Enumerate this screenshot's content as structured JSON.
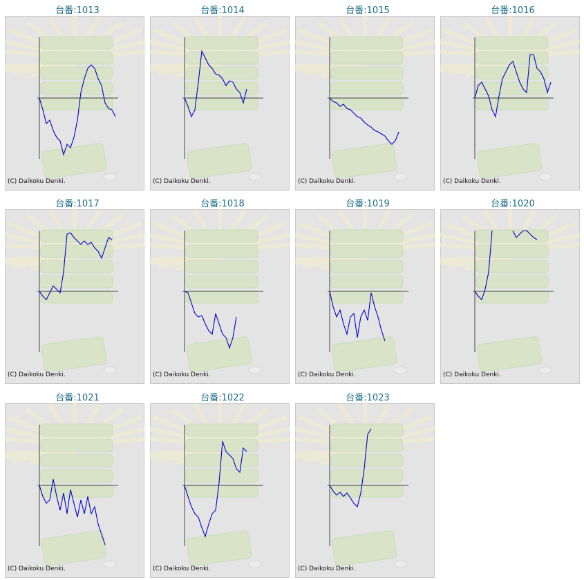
{
  "chart_data": [
    {
      "type": "line",
      "title": "台番:1013",
      "credit": "(C) Daikoku Denki.",
      "color": "#0000cc",
      "ylim": [
        -88,
        88
      ],
      "values": [
        0,
        -17,
        -37,
        -32,
        -47,
        -57,
        -62,
        -82,
        -67,
        -72,
        -57,
        -32,
        8,
        28,
        43,
        48,
        43,
        28,
        18,
        -7,
        -15,
        -17,
        -27
      ]
    },
    {
      "type": "line",
      "title": "台番:1014",
      "credit": "(C) Daikoku Denki.",
      "color": "#0000cc",
      "ylim": [
        -88,
        88
      ],
      "values": [
        0,
        -12,
        -27,
        -17,
        23,
        68,
        58,
        48,
        43,
        35,
        33,
        28,
        18,
        25,
        23,
        13,
        8,
        -7,
        13
      ]
    },
    {
      "type": "line",
      "title": "台番:1015",
      "credit": "(C) Daikoku Denki.",
      "color": "#0000cc",
      "ylim": [
        -88,
        88
      ],
      "values": [
        0,
        -5,
        -7,
        -12,
        -9,
        -15,
        -17,
        -22,
        -27,
        -29,
        -35,
        -39,
        -42,
        -47,
        -49,
        -52,
        -55,
        -62,
        -67,
        -62,
        -49
      ]
    },
    {
      "type": "line",
      "title": "台番:1016",
      "credit": "(C) Daikoku Denki.",
      "color": "#0000cc",
      "ylim": [
        -88,
        88
      ],
      "values": [
        0,
        18,
        23,
        13,
        3,
        -17,
        -27,
        3,
        28,
        38,
        48,
        53,
        38,
        23,
        13,
        8,
        63,
        63,
        43,
        38,
        28,
        8,
        23
      ]
    },
    {
      "type": "line",
      "title": "台番:1017",
      "credit": "(C) Daikoku Denki.",
      "color": "#0000cc",
      "ylim": [
        -88,
        88
      ],
      "values": [
        0,
        -7,
        -12,
        -2,
        8,
        3,
        -2,
        28,
        83,
        85,
        78,
        73,
        68,
        73,
        68,
        71,
        63,
        58,
        48,
        63,
        78,
        75
      ]
    },
    {
      "type": "line",
      "title": "台番:1018",
      "credit": "(C) Daikoku Denki.",
      "color": "#0000cc",
      "ylim": [
        -88,
        88
      ],
      "values": [
        0,
        -2,
        -17,
        -32,
        -37,
        -35,
        -47,
        -57,
        -62,
        -32,
        -47,
        -62,
        -67,
        -82,
        -67,
        -37
      ]
    },
    {
      "type": "line",
      "title": "台番:1019",
      "credit": "(C) Daikoku Denki.",
      "color": "#0000cc",
      "ylim": [
        -88,
        88
      ],
      "values": [
        0,
        -22,
        -37,
        -27,
        -47,
        -62,
        -37,
        -32,
        -67,
        -37,
        -27,
        -42,
        -2,
        -22,
        -37,
        -57,
        -72
      ]
    },
    {
      "type": "line",
      "title": "台番:1020",
      "credit": "(C) Daikoku Denki.",
      "color": "#0000cc",
      "ylim": [
        -88,
        88
      ],
      "values": [
        0,
        -7,
        -12,
        3,
        28,
        88,
        null,
        null,
        null,
        null,
        null,
        88,
        78,
        83,
        88,
        88,
        83,
        78,
        75
      ]
    },
    {
      "type": "line",
      "title": "台番:1021",
      "credit": "(C) Daikoku Denki.",
      "color": "#0000cc",
      "ylim": [
        -88,
        88
      ],
      "values": [
        0,
        -16,
        -26,
        -21,
        9,
        -16,
        -36,
        -11,
        -41,
        -6,
        -26,
        -46,
        -21,
        -41,
        -16,
        -41,
        -31,
        -56,
        -71,
        -86
      ]
    },
    {
      "type": "line",
      "title": "台番:1022",
      "credit": "(C) Daikoku Denki.",
      "color": "#0000cc",
      "ylim": [
        -88,
        88
      ],
      "values": [
        0,
        -16,
        -31,
        -41,
        -46,
        -61,
        -74,
        -56,
        -41,
        -36,
        4,
        64,
        49,
        44,
        39,
        24,
        19,
        54,
        49
      ]
    },
    {
      "type": "line",
      "title": "台番:1023",
      "credit": "(C) Daikoku Denki.",
      "color": "#0000cc",
      "ylim": [
        -88,
        88
      ],
      "values": [
        0,
        -8,
        -14,
        -10,
        -16,
        -11,
        -18,
        -26,
        -31,
        -11,
        24,
        74,
        82
      ]
    }
  ]
}
